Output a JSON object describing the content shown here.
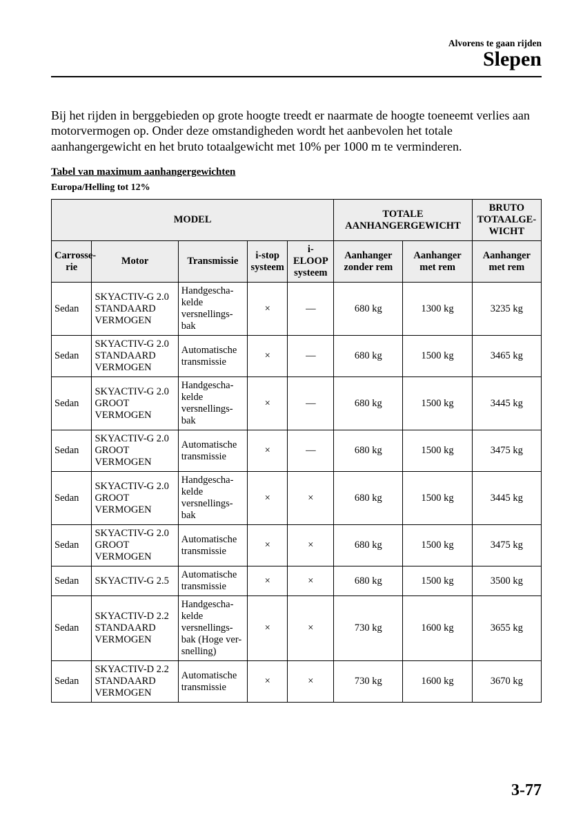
{
  "header": {
    "breadcrumb": "Alvorens te gaan rijden",
    "title": "Slepen"
  },
  "intro": "Bij het rijden in berggebieden op grote hoogte treedt er naarmate de hoogte toeneemt verlies aan motorvermogen op. Onder deze omstandigheden wordt het aanbevolen het totale aanhangergewicht en het bruto totaalgewicht met 10% per 1000 m te verminderen.",
  "table_title": "Tabel van maximum aanhangergewichten",
  "region_label": "Europa/Helling tot 12%",
  "headers": {
    "model": "MODEL",
    "totale": "TOTALE AANHANGERGEWICHT",
    "bruto": "BRUTO TOTAALGE-WICHT",
    "carrosserie": "Carrosse-rie",
    "motor": "Motor",
    "transmissie": "Transmissie",
    "istop": "i-stop systeem",
    "ieloop": "i-ELOOP systeem",
    "zonder_rem": "Aanhanger zonder rem",
    "met_rem": "Aanhanger met rem",
    "bruto_met_rem": "Aanhanger met rem"
  },
  "rows": [
    {
      "body": "Sedan",
      "motor": "SKYACTIV-G 2.0 STANDAARD VERMOGEN",
      "trans": "Handgescha-kelde versnellings-bak",
      "istop": "×",
      "ieloop": "—",
      "zonrem": "680 kg",
      "metrem": "1300 kg",
      "bruto": "3235 kg"
    },
    {
      "body": "Sedan",
      "motor": "SKYACTIV-G 2.0 STANDAARD VERMOGEN",
      "trans": "Automatische transmissie",
      "istop": "×",
      "ieloop": "—",
      "zonrem": "680 kg",
      "metrem": "1500 kg",
      "bruto": "3465 kg"
    },
    {
      "body": "Sedan",
      "motor": "SKYACTIV-G 2.0 GROOT VERMOGEN",
      "trans": "Handgescha-kelde versnellings-bak",
      "istop": "×",
      "ieloop": "—",
      "zonrem": "680 kg",
      "metrem": "1500 kg",
      "bruto": "3445 kg"
    },
    {
      "body": "Sedan",
      "motor": "SKYACTIV-G 2.0 GROOT VERMOGEN",
      "trans": "Automatische transmissie",
      "istop": "×",
      "ieloop": "—",
      "zonrem": "680 kg",
      "metrem": "1500 kg",
      "bruto": "3475 kg"
    },
    {
      "body": "Sedan",
      "motor": "SKYACTIV-G 2.0 GROOT VERMOGEN",
      "trans": "Handgescha-kelde versnellings-bak",
      "istop": "×",
      "ieloop": "×",
      "zonrem": "680 kg",
      "metrem": "1500 kg",
      "bruto": "3445 kg"
    },
    {
      "body": "Sedan",
      "motor": "SKYACTIV-G 2.0 GROOT VERMOGEN",
      "trans": "Automatische transmissie",
      "istop": "×",
      "ieloop": "×",
      "zonrem": "680 kg",
      "metrem": "1500 kg",
      "bruto": "3475 kg"
    },
    {
      "body": "Sedan",
      "motor": "SKYACTIV-G 2.5",
      "trans": "Automatische transmissie",
      "istop": "×",
      "ieloop": "×",
      "zonrem": "680 kg",
      "metrem": "1500 kg",
      "bruto": "3500 kg"
    },
    {
      "body": "Sedan",
      "motor": "SKYACTIV-D 2.2 STANDAARD VERMOGEN",
      "trans": "Handgescha-kelde versnellings-bak (Hoge ver-snelling)",
      "istop": "×",
      "ieloop": "×",
      "zonrem": "730 kg",
      "metrem": "1600 kg",
      "bruto": "3655 kg"
    },
    {
      "body": "Sedan",
      "motor": "SKYACTIV-D 2.2 STANDAARD VERMOGEN",
      "trans": "Automatische transmissie",
      "istop": "×",
      "ieloop": "×",
      "zonrem": "730 kg",
      "metrem": "1600 kg",
      "bruto": "3670 kg"
    }
  ],
  "page_number": "3-77"
}
